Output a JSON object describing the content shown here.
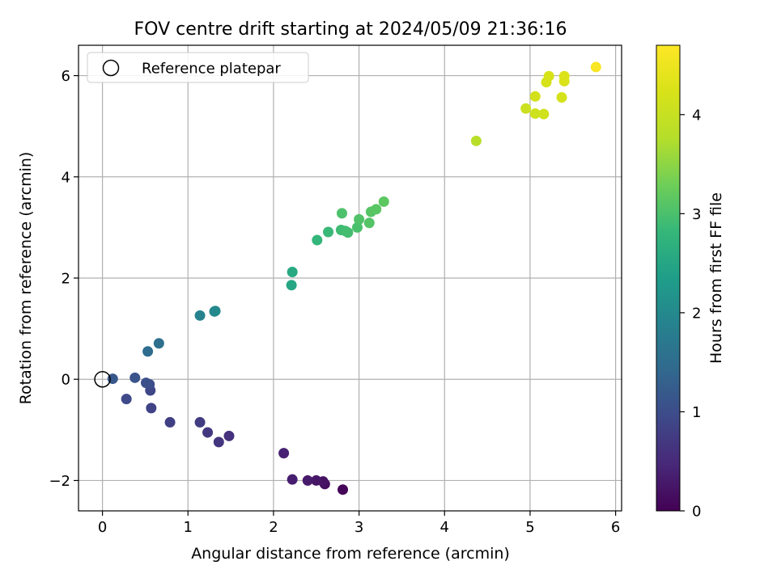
{
  "chart_data": {
    "type": "scatter",
    "title": "FOV centre drift starting at 2024/05/09 21:36:16",
    "xlabel": "Angular distance from reference (arcmin)",
    "ylabel": "Rotation from reference (arcmin)",
    "xlim": [
      -0.28,
      6.07
    ],
    "ylim": [
      -2.6,
      6.6
    ],
    "xticks": [
      0,
      1,
      2,
      3,
      4,
      5,
      6
    ],
    "yticks": [
      -2,
      0,
      2,
      4,
      6
    ],
    "xtick_labels": [
      "0",
      "1",
      "2",
      "3",
      "4",
      "5",
      "6"
    ],
    "ytick_labels": [
      "−2",
      "0",
      "2",
      "4",
      "6"
    ],
    "grid": true,
    "legend": {
      "placement": "top-left",
      "entries": [
        {
          "label": "Reference platepar",
          "marker": "open-circle"
        }
      ]
    },
    "reference_point": {
      "x": 0,
      "y": 0
    },
    "colorbar": {
      "label": "Hours from first FF file",
      "range": [
        0,
        4.7
      ],
      "ticks": [
        0,
        1,
        2,
        3,
        4
      ],
      "tick_labels": [
        "0",
        "1",
        "2",
        "3",
        "4"
      ],
      "colormap": "viridis"
    },
    "points": [
      {
        "x": 2.81,
        "y": -2.18,
        "c": 0.05
      },
      {
        "x": 2.6,
        "y": -2.07,
        "c": 0.15
      },
      {
        "x": 2.58,
        "y": -2.02,
        "c": 0.2
      },
      {
        "x": 2.5,
        "y": -2.0,
        "c": 0.25
      },
      {
        "x": 2.4,
        "y": -2.0,
        "c": 0.3
      },
      {
        "x": 2.22,
        "y": -1.98,
        "c": 0.35
      },
      {
        "x": 2.12,
        "y": -1.46,
        "c": 0.4
      },
      {
        "x": 1.48,
        "y": -1.12,
        "c": 0.6
      },
      {
        "x": 1.36,
        "y": -1.24,
        "c": 0.65
      },
      {
        "x": 1.23,
        "y": -1.05,
        "c": 0.7
      },
      {
        "x": 1.14,
        "y": -0.85,
        "c": 0.75
      },
      {
        "x": 0.79,
        "y": -0.85,
        "c": 0.8
      },
      {
        "x": 0.57,
        "y": -0.57,
        "c": 0.85
      },
      {
        "x": 0.56,
        "y": -0.22,
        "c": 0.9
      },
      {
        "x": 0.28,
        "y": -0.39,
        "c": 0.95
      },
      {
        "x": 0.55,
        "y": -0.1,
        "c": 1.0
      },
      {
        "x": 0.51,
        "y": -0.07,
        "c": 1.05
      },
      {
        "x": 0.38,
        "y": 0.03,
        "c": 1.1
      },
      {
        "x": 0.12,
        "y": 0.01,
        "c": 1.15
      },
      {
        "x": 0.53,
        "y": 0.55,
        "c": 1.5
      },
      {
        "x": 0.66,
        "y": 0.71,
        "c": 1.55
      },
      {
        "x": 1.14,
        "y": 1.26,
        "c": 1.9
      },
      {
        "x": 1.31,
        "y": 1.34,
        "c": 1.95
      },
      {
        "x": 1.32,
        "y": 1.35,
        "c": 2.0
      },
      {
        "x": 2.21,
        "y": 1.86,
        "c": 2.5
      },
      {
        "x": 2.22,
        "y": 2.12,
        "c": 2.55
      },
      {
        "x": 2.51,
        "y": 2.75,
        "c": 2.8
      },
      {
        "x": 2.64,
        "y": 2.91,
        "c": 2.85
      },
      {
        "x": 2.79,
        "y": 2.95,
        "c": 2.9
      },
      {
        "x": 2.84,
        "y": 2.93,
        "c": 2.92
      },
      {
        "x": 2.87,
        "y": 2.9,
        "c": 2.95
      },
      {
        "x": 2.98,
        "y": 3.0,
        "c": 3.0
      },
      {
        "x": 2.8,
        "y": 3.28,
        "c": 3.02
      },
      {
        "x": 3.0,
        "y": 3.16,
        "c": 3.05
      },
      {
        "x": 3.12,
        "y": 3.09,
        "c": 3.08
      },
      {
        "x": 3.14,
        "y": 3.31,
        "c": 3.1
      },
      {
        "x": 3.2,
        "y": 3.36,
        "c": 3.12
      },
      {
        "x": 3.29,
        "y": 3.51,
        "c": 3.15
      },
      {
        "x": 4.37,
        "y": 4.71,
        "c": 3.8
      },
      {
        "x": 4.95,
        "y": 5.35,
        "c": 4.05
      },
      {
        "x": 5.06,
        "y": 5.25,
        "c": 4.1
      },
      {
        "x": 5.16,
        "y": 5.24,
        "c": 4.12
      },
      {
        "x": 5.06,
        "y": 5.59,
        "c": 4.15
      },
      {
        "x": 5.37,
        "y": 5.57,
        "c": 4.18
      },
      {
        "x": 5.19,
        "y": 5.87,
        "c": 4.2
      },
      {
        "x": 5.22,
        "y": 5.99,
        "c": 4.22
      },
      {
        "x": 5.4,
        "y": 5.89,
        "c": 4.25
      },
      {
        "x": 5.4,
        "y": 5.99,
        "c": 4.28
      },
      {
        "x": 5.77,
        "y": 6.17,
        "c": 4.65
      }
    ]
  }
}
